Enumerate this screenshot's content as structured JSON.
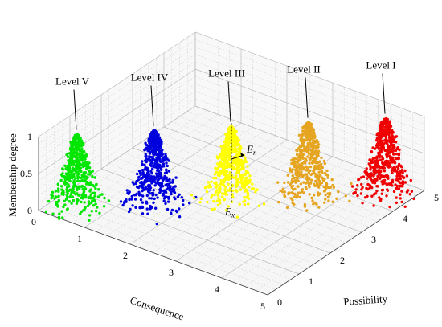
{
  "chart_data": {
    "type": "scatter",
    "projection": "3d",
    "xlabel": "Consequence",
    "ylabel": "Possibility",
    "zlabel": "Membership degree",
    "xlim": [
      0,
      5
    ],
    "ylim": [
      0,
      5
    ],
    "zlim": [
      0,
      1
    ],
    "x_ticks": [
      "0",
      "1",
      "2",
      "3",
      "4",
      "5"
    ],
    "y_ticks": [
      "0",
      "1",
      "2",
      "3",
      "4",
      "5"
    ],
    "z_ticks": [
      "0",
      "0.5",
      "1"
    ],
    "grid": true,
    "series": [
      {
        "name": "Level V",
        "color": "#00e600",
        "ex": 0.5,
        "en": 0.17,
        "peak": 1.0
      },
      {
        "name": "Level IV",
        "color": "#0000dd",
        "ex": 1.5,
        "en": 0.17,
        "peak": 1.0
      },
      {
        "name": "Level III",
        "color": "#ffff00",
        "ex": 2.5,
        "en": 0.17,
        "peak": 1.0
      },
      {
        "name": "Level II",
        "color": "#e6a520",
        "ex": 3.5,
        "en": 0.17,
        "peak": 1.0
      },
      {
        "name": "Level I",
        "color": "#f00000",
        "ex": 4.5,
        "en": 0.17,
        "peak": 1.0
      }
    ],
    "annotations": {
      "ex": {
        "base": "E",
        "sub": "x"
      },
      "en": {
        "base": "E",
        "sub": "n"
      }
    }
  }
}
